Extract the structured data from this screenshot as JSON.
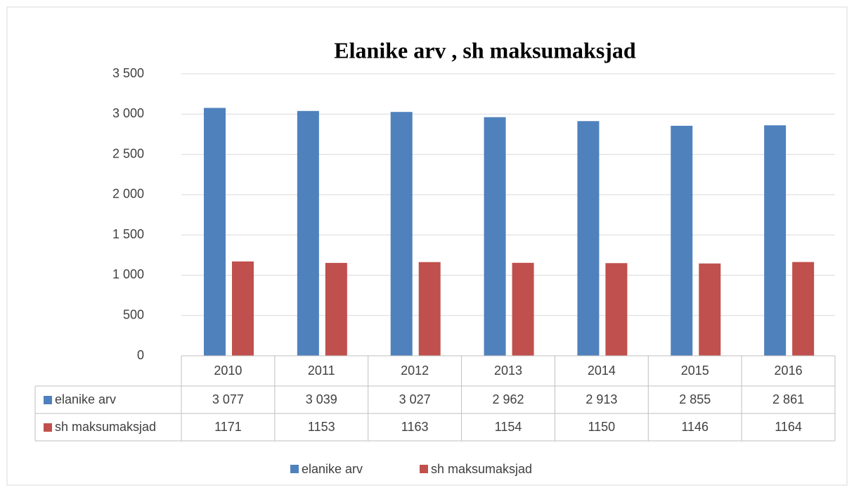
{
  "chart_data": {
    "type": "bar",
    "title": "Elanike arv , sh maksumaksjad",
    "categories": [
      "2010",
      "2011",
      "2012",
      "2013",
      "2014",
      "2015",
      "2016"
    ],
    "series": [
      {
        "name": "elanike arv",
        "color": "#4f81bd",
        "values": [
          3077,
          3039,
          3027,
          2962,
          2913,
          2855,
          2861
        ],
        "value_labels": [
          "3 077",
          "3 039",
          "3 027",
          "2 962",
          "2 913",
          "2 855",
          "2 861"
        ]
      },
      {
        "name": "sh maksumaksjad",
        "color": "#c0504d",
        "values": [
          1171,
          1153,
          1163,
          1154,
          1150,
          1146,
          1164
        ]
      }
    ],
    "ylim": [
      0,
      3500
    ],
    "yticks": [
      0,
      500,
      {
        "value": 1000,
        "label": "1 000"
      },
      {
        "value": 1500,
        "label": "1 500"
      },
      {
        "value": 2000,
        "label": "2 000"
      },
      {
        "value": 2500,
        "label": "2 500"
      },
      {
        "value": 3000,
        "label": "3 000"
      },
      {
        "value": 3500,
        "label": "3 500"
      }
    ],
    "grid": true,
    "legend": "bottom"
  }
}
